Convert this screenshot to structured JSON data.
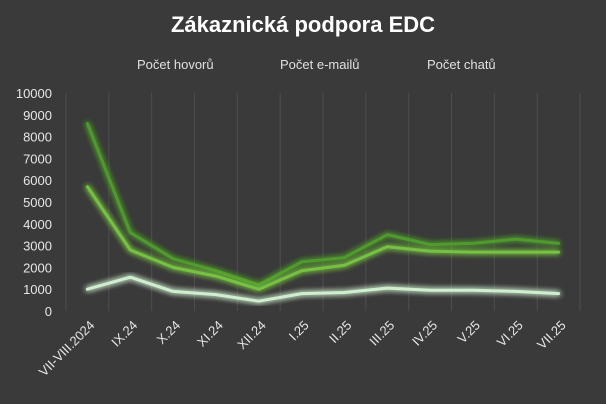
{
  "chart_data": {
    "type": "line",
    "title": "Zákaznická podpora EDC",
    "xlabel": "",
    "ylabel": "",
    "ylim": [
      0,
      10000
    ],
    "yticks": [
      0,
      1000,
      2000,
      3000,
      4000,
      5000,
      6000,
      7000,
      8000,
      9000,
      10000
    ],
    "categories": [
      "VII-VIII.2024",
      "IX.24",
      "X.24",
      "XI.24",
      "XII.24",
      "I.25",
      "II.25",
      "III.25",
      "IV.25",
      "V.25",
      "VI.25",
      "VII.25"
    ],
    "legend_position": "top",
    "grid": "vertical",
    "background": "#3a3a3a",
    "series": [
      {
        "name": "Počet hovorů",
        "color": "#4f9a2f",
        "values": [
          8600,
          3600,
          2400,
          1850,
          1200,
          2250,
          2450,
          3500,
          3050,
          3100,
          3300,
          3100
        ]
      },
      {
        "name": "Počet e-mailů",
        "color": "#76c043",
        "values": [
          5700,
          2800,
          2000,
          1600,
          1000,
          1850,
          2100,
          2950,
          2750,
          2700,
          2700,
          2700
        ]
      },
      {
        "name": "Počet chatů",
        "color": "#cfeecf",
        "values": [
          1000,
          1550,
          900,
          750,
          450,
          800,
          850,
          1050,
          950,
          950,
          900,
          800
        ]
      }
    ]
  }
}
